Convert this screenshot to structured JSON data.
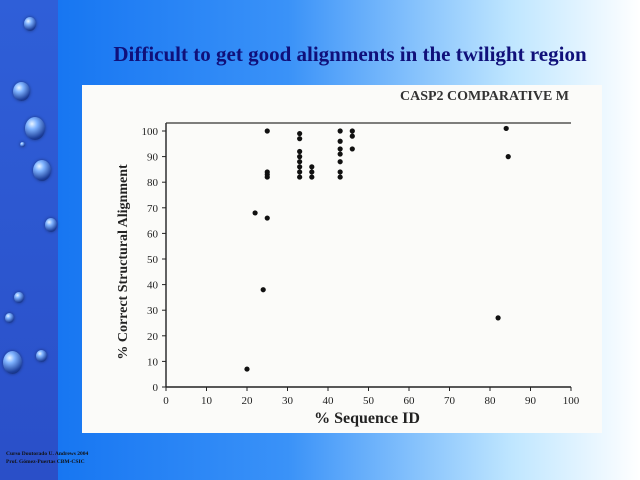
{
  "slide": {
    "title": "Difficult to get good alignments in the twilight region",
    "header_fragment": "CASP2 COMPARATIVE M",
    "footer_line1": "Curso Doutorado U. Andrews 2004",
    "footer_line2": "Prof. Gómez-Puertas CBM-CSIC"
  },
  "colors": {
    "title": "#10107a",
    "sidebar": "#2f5fd8",
    "background_left": "#0e6ff0",
    "background_right": "#ffffff",
    "points": "#111111"
  },
  "chart_data": {
    "type": "scatter",
    "title": "",
    "xlabel": "% Sequence ID",
    "ylabel": "% Correct Structural Alignment",
    "xlim": [
      0,
      100
    ],
    "ylim": [
      0,
      100
    ],
    "xticks": [
      0,
      10,
      20,
      30,
      40,
      50,
      60,
      70,
      80,
      90,
      100
    ],
    "yticks": [
      0,
      10,
      20,
      30,
      40,
      50,
      60,
      70,
      80,
      90,
      100
    ],
    "grid": false,
    "legend": "none",
    "series": [
      {
        "x": [
          20,
          22,
          24,
          25,
          25,
          25,
          25,
          25,
          33,
          33,
          33,
          33,
          33,
          33,
          33,
          33,
          36,
          36,
          36,
          43,
          43,
          43,
          43,
          43,
          43,
          43,
          46,
          46,
          46,
          82,
          84,
          84.5
        ],
        "y": [
          7,
          68,
          38,
          66,
          100,
          84,
          83,
          82,
          99,
          97,
          92,
          90,
          88,
          86,
          84,
          82,
          86,
          84,
          82,
          100,
          96,
          93,
          91,
          88,
          84,
          82,
          100,
          98,
          93,
          27,
          101,
          90
        ]
      }
    ]
  }
}
